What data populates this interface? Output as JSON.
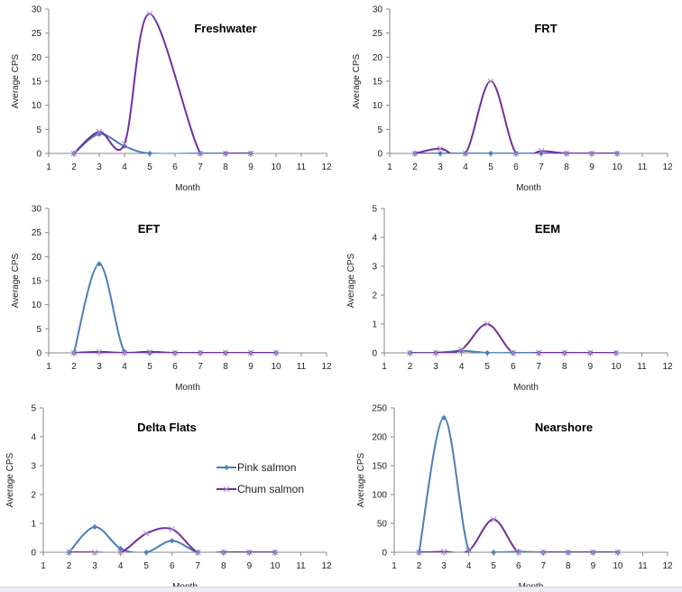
{
  "colors": {
    "pink": "#4a7ebb",
    "chum": "#7030a0",
    "axis": "#888888"
  },
  "legend": {
    "placement": "inside Delta Flats panel, right",
    "pink": "Pink salmon",
    "chum": "Chum salmon"
  },
  "chart_data": [
    {
      "type": "line",
      "smoothed": true,
      "title": "Freshwater",
      "xlabel": "Month",
      "ylabel": "Average CPS",
      "xlim": [
        1,
        12
      ],
      "ylim": [
        0,
        30
      ],
      "yticks": [
        0,
        5,
        10,
        15,
        20,
        25,
        30
      ],
      "xticks": [
        1,
        2,
        3,
        4,
        5,
        6,
        7,
        8,
        9,
        10,
        11,
        12
      ],
      "series": [
        {
          "name": "Pink salmon",
          "x": [
            2,
            3,
            4,
            5,
            7,
            8,
            9
          ],
          "y": [
            0,
            4,
            1.5,
            0,
            0,
            0,
            0
          ]
        },
        {
          "name": "Chum salmon",
          "x": [
            2,
            3,
            4,
            5,
            7,
            8,
            9
          ],
          "y": [
            0,
            4.5,
            2,
            29,
            0,
            0,
            0
          ]
        }
      ]
    },
    {
      "type": "line",
      "smoothed": true,
      "title": "FRT",
      "xlabel": "Month",
      "ylabel": "Average CPS",
      "xlim": [
        1,
        12
      ],
      "ylim": [
        0,
        30
      ],
      "yticks": [
        0,
        5,
        10,
        15,
        20,
        25,
        30
      ],
      "xticks": [
        1,
        2,
        3,
        4,
        5,
        6,
        7,
        8,
        9,
        10,
        11,
        12
      ],
      "series": [
        {
          "name": "Pink salmon",
          "x": [
            2,
            3,
            4,
            5,
            6,
            7,
            8,
            9,
            10
          ],
          "y": [
            0,
            0,
            0,
            0,
            0,
            0,
            0,
            0,
            0
          ]
        },
        {
          "name": "Chum salmon",
          "x": [
            2,
            3,
            4,
            5,
            6,
            7,
            8,
            9,
            10
          ],
          "y": [
            0,
            1,
            0,
            15,
            0,
            0.5,
            0,
            0,
            0
          ]
        }
      ]
    },
    {
      "type": "line",
      "smoothed": true,
      "title": "EFT",
      "xlabel": "Month",
      "ylabel": "Average CPS",
      "xlim": [
        1,
        12
      ],
      "ylim": [
        0,
        30
      ],
      "yticks": [
        0,
        5,
        10,
        15,
        20,
        25,
        30
      ],
      "xticks": [
        1,
        2,
        3,
        4,
        5,
        6,
        7,
        8,
        9,
        10,
        11,
        12
      ],
      "series": [
        {
          "name": "Pink salmon",
          "x": [
            2,
            3,
            4,
            5,
            6,
            7,
            8,
            9,
            10
          ],
          "y": [
            0,
            18.5,
            0.2,
            0,
            0,
            0,
            0,
            0,
            0
          ]
        },
        {
          "name": "Chum salmon",
          "x": [
            2,
            3,
            4,
            5,
            6,
            7,
            8,
            9,
            10
          ],
          "y": [
            0,
            0.2,
            0,
            0.2,
            0,
            0,
            0,
            0,
            0
          ]
        }
      ]
    },
    {
      "type": "line",
      "smoothed": true,
      "title": "EEM",
      "xlabel": "Month",
      "ylabel": "Average CPS",
      "xlim": [
        1,
        12
      ],
      "ylim": [
        0,
        5
      ],
      "yticks": [
        0,
        1,
        2,
        3,
        4,
        5
      ],
      "xticks": [
        1,
        2,
        3,
        4,
        5,
        6,
        7,
        8,
        9,
        10,
        11,
        12
      ],
      "series": [
        {
          "name": "Pink salmon",
          "x": [
            2,
            3,
            4,
            5,
            6,
            7,
            8,
            9,
            10
          ],
          "y": [
            0,
            0,
            0.07,
            0,
            0,
            0,
            0,
            0,
            0
          ]
        },
        {
          "name": "Chum salmon",
          "x": [
            2,
            3,
            4,
            5,
            6,
            7,
            8,
            9,
            10
          ],
          "y": [
            0,
            0,
            0.12,
            1,
            0,
            0,
            0,
            0,
            0
          ]
        }
      ]
    },
    {
      "type": "line",
      "smoothed": true,
      "title": "Delta Flats",
      "xlabel": "Month",
      "ylabel": "Average CPS",
      "xlim": [
        1,
        12
      ],
      "ylim": [
        0,
        5
      ],
      "yticks": [
        0,
        1,
        2,
        3,
        4,
        5
      ],
      "xticks": [
        1,
        2,
        3,
        4,
        5,
        6,
        7,
        8,
        9,
        10,
        11,
        12
      ],
      "series": [
        {
          "name": "Pink salmon",
          "x": [
            2,
            3,
            4,
            5,
            6,
            7,
            8,
            9,
            10
          ],
          "y": [
            0,
            0.88,
            0.13,
            0,
            0.4,
            0,
            0,
            0,
            0
          ]
        },
        {
          "name": "Chum salmon",
          "x": [
            2,
            3,
            4,
            5,
            6,
            7,
            8,
            9,
            10
          ],
          "y": [
            0,
            0,
            0,
            0.65,
            0.8,
            0,
            0,
            0,
            0
          ]
        }
      ]
    },
    {
      "type": "line",
      "smoothed": true,
      "title": "Nearshore",
      "xlabel": "Month",
      "ylabel": "Average CPS",
      "xlim": [
        1,
        12
      ],
      "ylim": [
        0,
        250
      ],
      "yticks": [
        0,
        50,
        100,
        150,
        200,
        250
      ],
      "xticks": [
        1,
        2,
        3,
        4,
        5,
        6,
        7,
        8,
        9,
        10,
        11,
        12
      ],
      "series": [
        {
          "name": "Pink salmon",
          "x": [
            2,
            3,
            4,
            5,
            6,
            7,
            8,
            9,
            10
          ],
          "y": [
            0,
            233,
            3,
            0,
            1,
            0,
            0,
            0,
            0
          ]
        },
        {
          "name": "Chum salmon",
          "x": [
            2,
            3,
            4,
            5,
            6,
            7,
            8,
            9,
            10
          ],
          "y": [
            0,
            1,
            3,
            57,
            0,
            0,
            0,
            0,
            0
          ]
        }
      ]
    }
  ]
}
